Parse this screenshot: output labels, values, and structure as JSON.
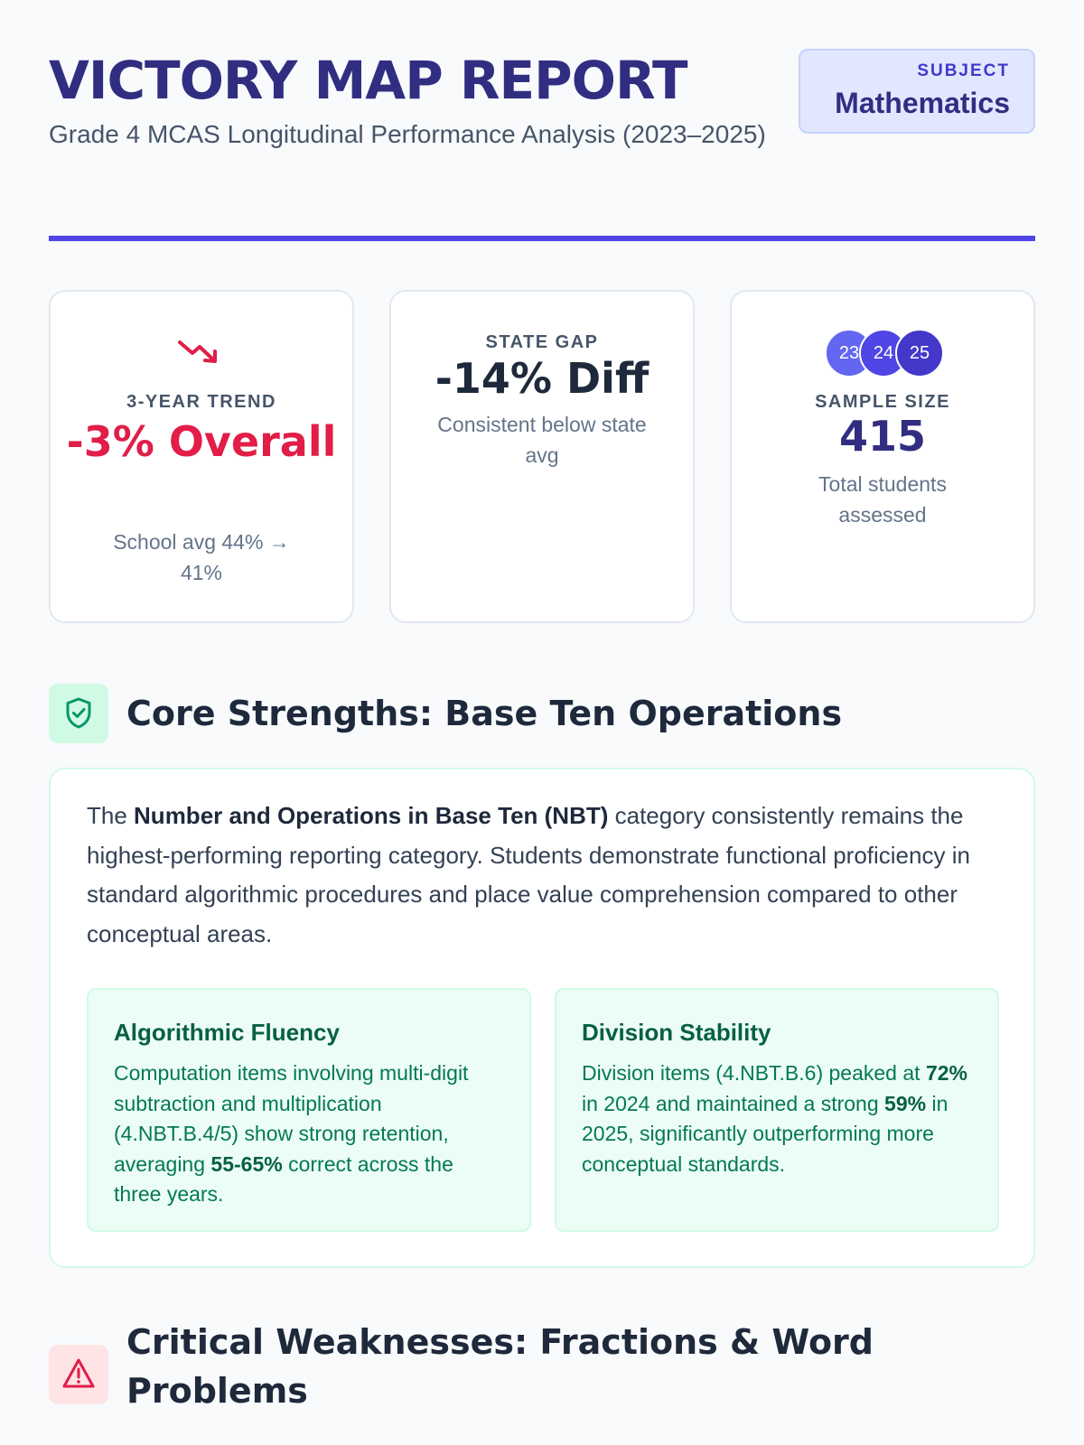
{
  "header": {
    "title": "VICTORY MAP REPORT",
    "subtitle": "Grade 4 MCAS Longitudinal Performance Analysis (2023–2025)",
    "subject_label": "SUBJECT",
    "subject_value": "Mathematics"
  },
  "stats": [
    {
      "icon": "trending-down-icon",
      "label": "3-YEAR TREND",
      "value": "-3% Overall",
      "note": "School avg 44% → 41%",
      "color": "#e11d48"
    },
    {
      "label": "STATE GAP",
      "value": "-14% Diff",
      "note": "Consistent below state avg"
    },
    {
      "years": [
        "23",
        "24",
        "25"
      ],
      "label": "SAMPLE SIZE",
      "value": "415",
      "note": "Total students assessed"
    }
  ],
  "strengths": {
    "icon": "shield-check-icon",
    "title": "Core Strengths: Base Ten Operations",
    "intro_pre": "The ",
    "intro_bold": "Number and Operations in Base Ten (NBT)",
    "intro_post": " category consistently remains the highest-performing reporting category. Students demonstrate functional proficiency in standard algorithmic procedures and place value comprehension compared to other conceptual areas.",
    "cards": [
      {
        "title": "Algorithmic Fluency",
        "text_pre": "Computation items involving multi-digit subtraction and multiplication (4.NBT.B.4/5) show strong retention, averaging ",
        "text_bold": "55-65%",
        "text_post": " correct across the three years."
      },
      {
        "title": "Division Stability",
        "text_pre": "Division items (4.NBT.B.6) peaked at ",
        "text_bold": "72%",
        "text_mid": " in 2024 and maintained a strong ",
        "text_bold2": "59%",
        "text_post": " in 2025, significantly outperforming more conceptual standards."
      }
    ]
  },
  "weaknesses": {
    "icon": "warning-triangle-icon",
    "title": "Critical Weaknesses: Fractions & Word Problems"
  },
  "colors": {
    "brand": "#312e81",
    "accent": "#4f46e5",
    "negative": "#e11d48",
    "positive": "#065f46"
  }
}
